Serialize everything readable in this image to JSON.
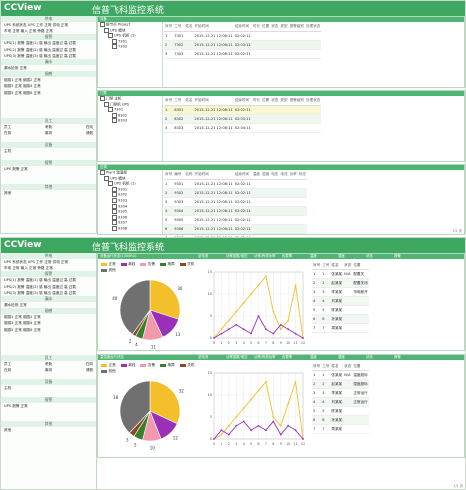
{
  "app": {
    "logo": "CCView",
    "title": "信普飞科监控系统"
  },
  "sidebar": {
    "sections": [
      {
        "title": "供电",
        "lines": [
          "UPS 系统状态 UPS 工作 正常 供电 正常",
          "市电 正常 输入 正常 旁路 正常"
        ]
      },
      {
        "title": "报警",
        "lines": [
          "UPS(1) 报警 温度(1) 感 输出 温度过 高 过载",
          "UPS(2) 报警 温度(2) 感 输出 温度过 高 过载",
          "UPS(3) 报警 温度(3) 感 输出 温度过 高 过载"
        ]
      },
      {
        "title": "漏水",
        "lines": [
          "漏水检测 正常"
        ]
      },
      {
        "title": "烟感",
        "lines": [
          "烟感1 正常 烟感2 正常",
          "烟感3 正常 烟感4 正常",
          "烟感5 正常 烟感6 正常"
        ]
      }
    ],
    "worker": {
      "title": "员工",
      "cols": [
        "员工",
        "考勤",
        "在岗"
      ],
      "row": [
        "在岗",
        "离岗",
        "请假"
      ]
    },
    "device": {
      "title": "设备",
      "lines": [
        "主机"
      ]
    },
    "alarm": {
      "title": "报警",
      "lines": [
        "UPS 报警 正常"
      ]
    },
    "misc": {
      "title": "其他",
      "lines": [
        "其他"
      ]
    }
  },
  "top": {
    "panels": [
      {
        "title": "设备",
        "tree": [
          "根节点 Project",
          "UPS 模块",
          "UPS 机柜 (1)",
          "7301",
          "7302"
        ],
        "columns": [
          "序号",
          "工号",
          "姓名",
          "开始时间",
          "结束时间",
          "时长",
          "位置",
          "状态",
          "类型",
          "报警级别",
          "处理状态"
        ],
        "rows": [
          [
            "1",
            "7301",
            "",
            "2015-12-21 12:08:11",
            "02:02:11",
            "",
            "",
            "",
            "",
            "",
            ""
          ],
          [
            "2",
            "7302",
            "",
            "2015-12-21 12:08:11",
            "02:03:11",
            "",
            "",
            "",
            "",
            "",
            ""
          ],
          [
            "3",
            "7303",
            "",
            "2015-12-21 12:08:11",
            "02:02:11",
            "",
            "",
            "",
            "",
            "",
            ""
          ]
        ],
        "pager": ""
      },
      {
        "title": "门禁",
        "tree": [
          "门禁 主机",
          "门禁机 UPS",
          "7301",
          "8302",
          "8303"
        ],
        "columns": [
          "序号",
          "工号",
          "姓名",
          "开始时间",
          "结束时间",
          "时长",
          "位置",
          "状态",
          "类型",
          "报警级别",
          "处理状态"
        ],
        "rows": [
          [
            "1",
            "8301",
            "",
            "2015-12-21 12:08:11",
            "02:02:11",
            "",
            "",
            "",
            "",
            "",
            ""
          ],
          [
            "2",
            "8302",
            "",
            "2015-12-21 12:08:11",
            "02:03:11",
            "",
            "",
            "",
            "",
            "",
            ""
          ],
          [
            "3",
            "8303",
            "",
            "2015-12-21 12:08:11",
            "02:04:11",
            "",
            "",
            "",
            "",
            "",
            ""
          ]
        ],
        "pager": ""
      },
      {
        "title": "空调",
        "tree": [
          "Plant 温湿度",
          "UPS 模块",
          "UPS 机柜 (1)",
          "9301",
          "9302",
          "9303",
          "9304",
          "9305",
          "9306",
          "9307",
          "9308"
        ],
        "columns": [
          "序号",
          "编号",
          "名称",
          "开始时间",
          "结束时间",
          "温度",
          "湿度",
          "电压",
          "电流",
          "功率",
          "状态"
        ],
        "rows": [
          [
            "1",
            "9301",
            "",
            "2015-12-21 12:08:11",
            "02:02:11",
            "",
            "",
            "",
            "",
            "",
            ""
          ],
          [
            "2",
            "9302",
            "",
            "2015-12-21 12:08:11",
            "02:02:11",
            "",
            "",
            "",
            "",
            "",
            ""
          ],
          [
            "3",
            "9303",
            "",
            "2015-12-21 12:08:11",
            "02:02:11",
            "",
            "",
            "",
            "",
            "",
            ""
          ],
          [
            "4",
            "9304",
            "",
            "2015-12-21 12:08:11",
            "02:02:11",
            "",
            "",
            "",
            "",
            "",
            ""
          ],
          [
            "5",
            "9305",
            "",
            "2015-12-21 12:08:11",
            "02:02:11",
            "",
            "",
            "",
            "",
            "",
            ""
          ],
          [
            "6",
            "9306",
            "",
            "2015-12-21 12:08:11",
            "02:02:11",
            "",
            "",
            "",
            "",
            "",
            ""
          ],
          [
            "7",
            "9307",
            "",
            "2015-12-21 12:08:11",
            "02:02:11",
            "",
            "",
            "",
            "",
            "",
            ""
          ],
          [
            "8",
            "9308",
            "",
            "2015-12-21 12:08:11",
            "02:02:11",
            "",
            "",
            "",
            "",
            "",
            ""
          ]
        ],
        "pager": "1/1 页"
      }
    ]
  },
  "bottom": {
    "panels": [
      {
        "title": "设备运行状态(1000RU)",
        "band_labels": [
          "总电流",
          "功率因数/电压",
          "功率/有效功率",
          "负载率",
          "温度",
          "湿度",
          "状态",
          "报警"
        ],
        "pie_legend": [
          "正常",
          "离线",
          "告警",
          "故障",
          "关机",
          "其他"
        ],
        "list_columns": [
          "序号",
          "工号",
          "姓名",
          "状态",
          "位置"
        ],
        "list_rows": [
          [
            "1",
            "1",
            "张某某",
            "N/A",
            "配置关"
          ],
          [
            "2",
            "2",
            "赵某某",
            "",
            "配置关闭"
          ],
          [
            "3",
            "3",
            "李某某",
            "",
            "市电断开"
          ],
          [
            "4",
            "4",
            "刘某某",
            "",
            ""
          ],
          [
            "5",
            "5",
            "陈某某",
            "",
            ""
          ],
          [
            "6",
            "6",
            "孙某某",
            "",
            ""
          ],
          [
            "7",
            "7",
            "周某某",
            "",
            ""
          ]
        ]
      },
      {
        "title": "温湿度运行状态",
        "band_labels": [
          "总电流",
          "功率因数/电压",
          "功率/有效功率",
          "负载率",
          "温度",
          "湿度",
          "状态",
          "报警"
        ],
        "pie_legend": [
          "正常",
          "离线",
          "告警",
          "故障",
          "关机",
          "其他"
        ],
        "list_columns": [
          "序号",
          "工号",
          "姓名",
          "状态",
          "位置"
        ],
        "list_rows": [
          [
            "1",
            "1",
            "张某某",
            "N/A",
            "温度超标"
          ],
          [
            "2",
            "2",
            "赵某某",
            "",
            "湿度超标"
          ],
          [
            "3",
            "3",
            "李某某",
            "",
            "正常运行"
          ],
          [
            "4",
            "4",
            "刘某某",
            "",
            "正常运行"
          ],
          [
            "5",
            "5",
            "陈某某",
            "",
            ""
          ],
          [
            "6",
            "6",
            "孙某某",
            "",
            ""
          ],
          [
            "7",
            "7",
            "周某某",
            "",
            ""
          ]
        ]
      }
    ],
    "pager": "1/1 页"
  },
  "chart_data": [
    {
      "type": "pie",
      "categories": [
        "正常",
        "离线",
        "告警",
        "故障",
        "关机",
        "其他"
      ],
      "values": [
        30,
        13,
        11,
        4,
        2,
        40
      ],
      "colors": [
        "#f3c02b",
        "#9b30b8",
        "#f19aae",
        "#3a7f2c",
        "#8a4a22",
        "#707070"
      ],
      "labels": [
        "30",
        "13",
        "11",
        "4",
        "2",
        "40"
      ]
    },
    {
      "type": "line",
      "x": [
        "0",
        "1",
        "2",
        "3",
        "4",
        "5",
        "6",
        "7",
        "8",
        "9",
        "10",
        "11",
        "12"
      ],
      "series": [
        {
          "name": "",
          "color": "#f3c02b",
          "values": [
            0,
            2,
            4,
            6,
            8,
            10,
            12,
            14,
            6,
            2,
            4,
            12,
            0
          ]
        },
        {
          "name": "",
          "color": "#9b30b8",
          "values": [
            0,
            1,
            2,
            3,
            2,
            1,
            5,
            2,
            1,
            3,
            2,
            1,
            0
          ]
        }
      ],
      "ylim": [
        0,
        15
      ],
      "yticks": [
        "0",
        "5",
        "10",
        "15"
      ]
    },
    {
      "type": "pie",
      "categories": [
        "正常",
        "离线",
        "告警",
        "故障",
        "关机",
        "其他"
      ],
      "values": [
        32,
        12,
        10,
        5,
        3,
        38
      ],
      "colors": [
        "#f3c02b",
        "#9b30b8",
        "#f19aae",
        "#3a7f2c",
        "#8a4a22",
        "#707070"
      ],
      "labels": [
        "32",
        "12",
        "10",
        "5",
        "3",
        "38"
      ]
    },
    {
      "type": "line",
      "x": [
        "0",
        "1",
        "2",
        "3",
        "4",
        "5",
        "6",
        "7",
        "8",
        "9",
        "10",
        "11",
        "12"
      ],
      "series": [
        {
          "name": "",
          "color": "#f3c02b",
          "values": [
            0,
            1,
            3,
            5,
            7,
            9,
            11,
            13,
            5,
            3,
            8,
            13,
            0
          ]
        },
        {
          "name": "",
          "color": "#9b30b8",
          "values": [
            0,
            2,
            1,
            3,
            4,
            2,
            3,
            2,
            4,
            1,
            3,
            2,
            0
          ]
        }
      ],
      "ylim": [
        0,
        15
      ],
      "yticks": [
        "0",
        "5",
        "10",
        "15"
      ]
    }
  ]
}
